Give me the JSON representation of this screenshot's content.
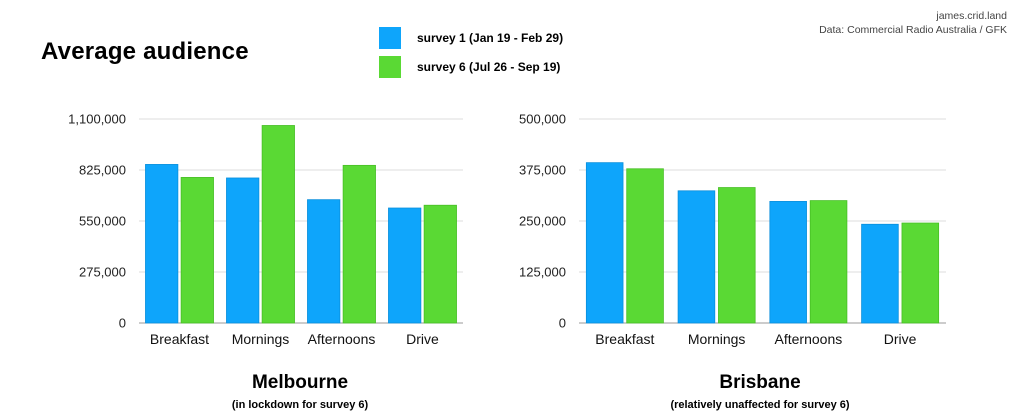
{
  "title": "Average audience",
  "credit": {
    "line1": "james.crid.land",
    "line2": "Data: Commercial Radio Australia / GFK"
  },
  "legend": [
    {
      "label": "survey 1 (Jan 19 - Feb 29)",
      "color": "#0ea5fb"
    },
    {
      "label": "survey 6 (Jul 26 - Sep 19)",
      "color": "#5ad934"
    }
  ],
  "chart_data": [
    {
      "type": "bar",
      "title": "Melbourne",
      "subtitle": "(in lockdown for survey 6)",
      "categories": [
        "Breakfast",
        "Mornings",
        "Afternoons",
        "Drive"
      ],
      "series": [
        {
          "name": "survey 1 (Jan 19 - Feb 29)",
          "values": [
            855000,
            782000,
            665000,
            620000
          ]
        },
        {
          "name": "survey 6 (Jul 26 - Sep 19)",
          "values": [
            785000,
            1065000,
            850000,
            635000
          ]
        }
      ],
      "ylim": [
        0,
        1100000
      ],
      "yticks": [
        "0",
        "275,000",
        "550,000",
        "825,000",
        "1,100,000"
      ],
      "grid": true
    },
    {
      "type": "bar",
      "title": "Brisbane",
      "subtitle": "(relatively unaffected for survey 6)",
      "categories": [
        "Breakfast",
        "Mornings",
        "Afternoons",
        "Drive"
      ],
      "series": [
        {
          "name": "survey 1 (Jan 19 - Feb 29)",
          "values": [
            393000,
            324000,
            298000,
            242000
          ]
        },
        {
          "name": "survey 6 (Jul 26 - Sep 19)",
          "values": [
            378000,
            332000,
            300000,
            245000
          ]
        }
      ],
      "ylim": [
        0,
        500000
      ],
      "yticks": [
        "0",
        "125,000",
        "250,000",
        "375,000",
        "500,000"
      ],
      "grid": true
    }
  ]
}
